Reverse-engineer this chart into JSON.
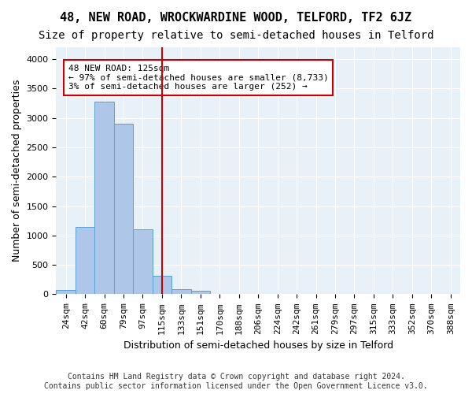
{
  "title": "48, NEW ROAD, WROCKWARDINE WOOD, TELFORD, TF2 6JZ",
  "subtitle": "Size of property relative to semi-detached houses in Telford",
  "xlabel": "Distribution of semi-detached houses by size in Telford",
  "ylabel": "Number of semi-detached properties",
  "footnote": "Contains HM Land Registry data © Crown copyright and database right 2024.\nContains public sector information licensed under the Open Government Licence v3.0.",
  "bins": [
    "24sqm",
    "42sqm",
    "60sqm",
    "79sqm",
    "97sqm",
    "115sqm",
    "133sqm",
    "151sqm",
    "170sqm",
    "188sqm",
    "206sqm",
    "224sqm",
    "242sqm",
    "261sqm",
    "279sqm",
    "297sqm",
    "315sqm",
    "333sqm",
    "352sqm",
    "370sqm",
    "388sqm"
  ],
  "values": [
    75,
    1150,
    3280,
    2900,
    1100,
    320,
    90,
    55,
    10,
    5,
    0,
    0,
    0,
    0,
    0,
    0,
    0,
    0,
    0,
    0,
    0
  ],
  "bar_color": "#aec6e8",
  "bar_edge_color": "#5a9fd4",
  "vline_x": 5,
  "vline_color": "#cc0000",
  "annotation_text": "48 NEW ROAD: 125sqm\n← 97% of semi-detached houses are smaller (8,733)\n3% of semi-detached houses are larger (252) →",
  "annotation_box_color": "#ffffff",
  "annotation_box_edge": "#cc0000",
  "ylim": [
    0,
    4200
  ],
  "yticks": [
    0,
    500,
    1000,
    1500,
    2000,
    2500,
    3000,
    3500,
    4000
  ],
  "background_color": "#e8f0f8",
  "grid_color": "#ffffff",
  "title_fontsize": 11,
  "subtitle_fontsize": 10,
  "axis_label_fontsize": 9,
  "tick_fontsize": 8,
  "footnote_fontsize": 7
}
